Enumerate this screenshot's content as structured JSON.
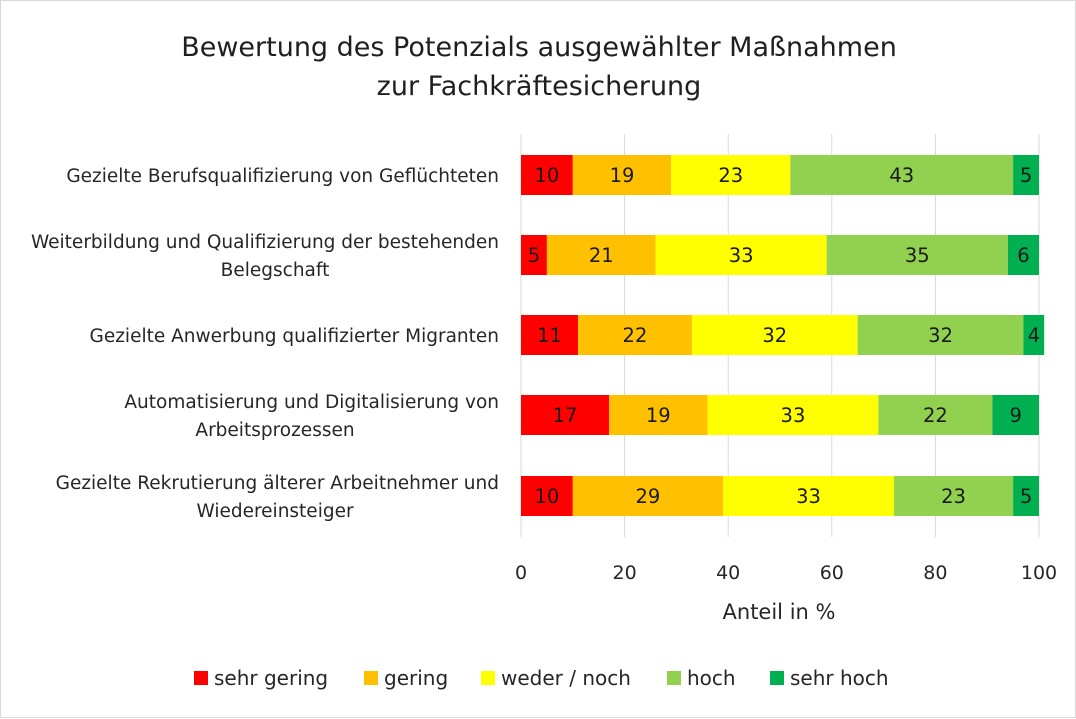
{
  "chart_data": {
    "type": "bar",
    "orientation": "horizontal",
    "stacked": true,
    "title": [
      "Bewertung des Potenzials ausgewählter Maßnahmen",
      "zur Fachkräftesicherung"
    ],
    "categories": [
      [
        "Gezielte Berufsqualifizierung von Geflüchteten"
      ],
      [
        "Weiterbildung und Qualifizierung der bestehenden",
        "Belegschaft"
      ],
      [
        "Gezielte Anwerbung qualifizierter Migranten"
      ],
      [
        "Automatisierung und Digitalisierung von",
        "Arbeitsprozessen"
      ],
      [
        "Gezielte Rekrutierung älterer Arbeitnehmer und",
        "Wiedereinsteiger"
      ]
    ],
    "series": [
      {
        "name": "sehr gering",
        "color": "#ff0000",
        "values": [
          10,
          5,
          11,
          17,
          10
        ]
      },
      {
        "name": "gering",
        "color": "#ffc000",
        "values": [
          19,
          21,
          22,
          19,
          29
        ]
      },
      {
        "name": "weder / noch",
        "color": "#ffff00",
        "values": [
          23,
          33,
          32,
          33,
          33
        ]
      },
      {
        "name": "hoch",
        "color": "#92d050",
        "values": [
          43,
          35,
          32,
          22,
          23
        ]
      },
      {
        "name": "sehr hoch",
        "color": "#00b050",
        "values": [
          5,
          6,
          4,
          9,
          5
        ]
      }
    ],
    "xlabel": "Anteil in %",
    "ylabel": "",
    "xlim": [
      0,
      100
    ],
    "xticks": [
      0,
      20,
      40,
      60,
      80,
      100
    ],
    "grid": true,
    "legend_position": "bottom"
  }
}
